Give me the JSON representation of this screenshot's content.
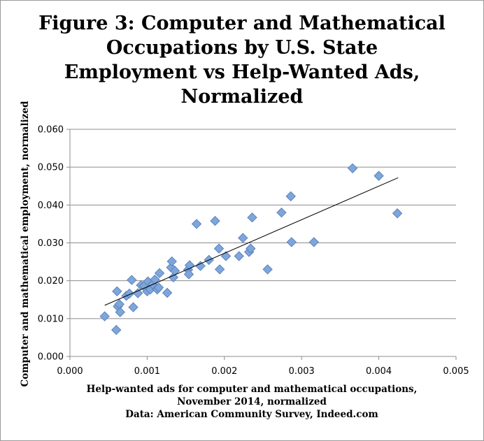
{
  "chart_data": {
    "type": "scatter",
    "title": "Figure 3: Computer and Mathematical\nOccupations by U.S. State\nEmployment vs Help-Wanted Ads,\nNormalized",
    "xlabel": [
      "Help-wanted ads for computer and mathematical occupations,",
      "November 2014, normalized",
      "Data: American Community Survey, Indeed.com"
    ],
    "ylabel": "Computer and mathematical employment, normalized",
    "xlim": [
      0,
      0.005
    ],
    "ylim": [
      0,
      0.06
    ],
    "x_ticks": [
      "0.000",
      "0.001",
      "0.002",
      "0.003",
      "0.004",
      "0.005"
    ],
    "y_ticks": [
      "0.000",
      "0.010",
      "0.020",
      "0.030",
      "0.040",
      "0.050",
      "0.060"
    ],
    "grid": "horizontal",
    "marker_color": "#7ea6dc",
    "marker_edge": "#5b82b8",
    "trendline": {
      "x1": 0.00045,
      "y1": 0.0135,
      "x2": 0.00425,
      "y2": 0.0472
    },
    "points": [
      [
        0.00045,
        0.0106
      ],
      [
        0.0006,
        0.007
      ],
      [
        0.00061,
        0.0172
      ],
      [
        0.00062,
        0.0132
      ],
      [
        0.00064,
        0.0138
      ],
      [
        0.00065,
        0.0117
      ],
      [
        0.00073,
        0.016
      ],
      [
        0.00077,
        0.0166
      ],
      [
        0.0008,
        0.0202
      ],
      [
        0.00082,
        0.013
      ],
      [
        0.00088,
        0.0167
      ],
      [
        0.00092,
        0.0188
      ],
      [
        0.00096,
        0.0186
      ],
      [
        0.001,
        0.0172
      ],
      [
        0.00101,
        0.0198
      ],
      [
        0.00104,
        0.0177
      ],
      [
        0.00107,
        0.0191
      ],
      [
        0.0011,
        0.0203
      ],
      [
        0.00113,
        0.0177
      ],
      [
        0.00115,
        0.0182
      ],
      [
        0.00116,
        0.022
      ],
      [
        0.00126,
        0.0168
      ],
      [
        0.00131,
        0.0235
      ],
      [
        0.00132,
        0.0251
      ],
      [
        0.00134,
        0.0209
      ],
      [
        0.00136,
        0.0226
      ],
      [
        0.00153,
        0.0229
      ],
      [
        0.00154,
        0.0217
      ],
      [
        0.00155,
        0.0241
      ],
      [
        0.00164,
        0.035
      ],
      [
        0.00169,
        0.0239
      ],
      [
        0.0018,
        0.0255
      ],
      [
        0.00188,
        0.0358
      ],
      [
        0.00193,
        0.0285
      ],
      [
        0.00194,
        0.023
      ],
      [
        0.00202,
        0.0265
      ],
      [
        0.00219,
        0.0265
      ],
      [
        0.00224,
        0.0313
      ],
      [
        0.00232,
        0.0276
      ],
      [
        0.00234,
        0.0285
      ],
      [
        0.00236,
        0.0367
      ],
      [
        0.00256,
        0.023
      ],
      [
        0.00274,
        0.038
      ],
      [
        0.00286,
        0.0423
      ],
      [
        0.00287,
        0.0302
      ],
      [
        0.00316,
        0.0302
      ],
      [
        0.00366,
        0.0497
      ],
      [
        0.004,
        0.0477
      ],
      [
        0.00424,
        0.0378
      ]
    ]
  }
}
